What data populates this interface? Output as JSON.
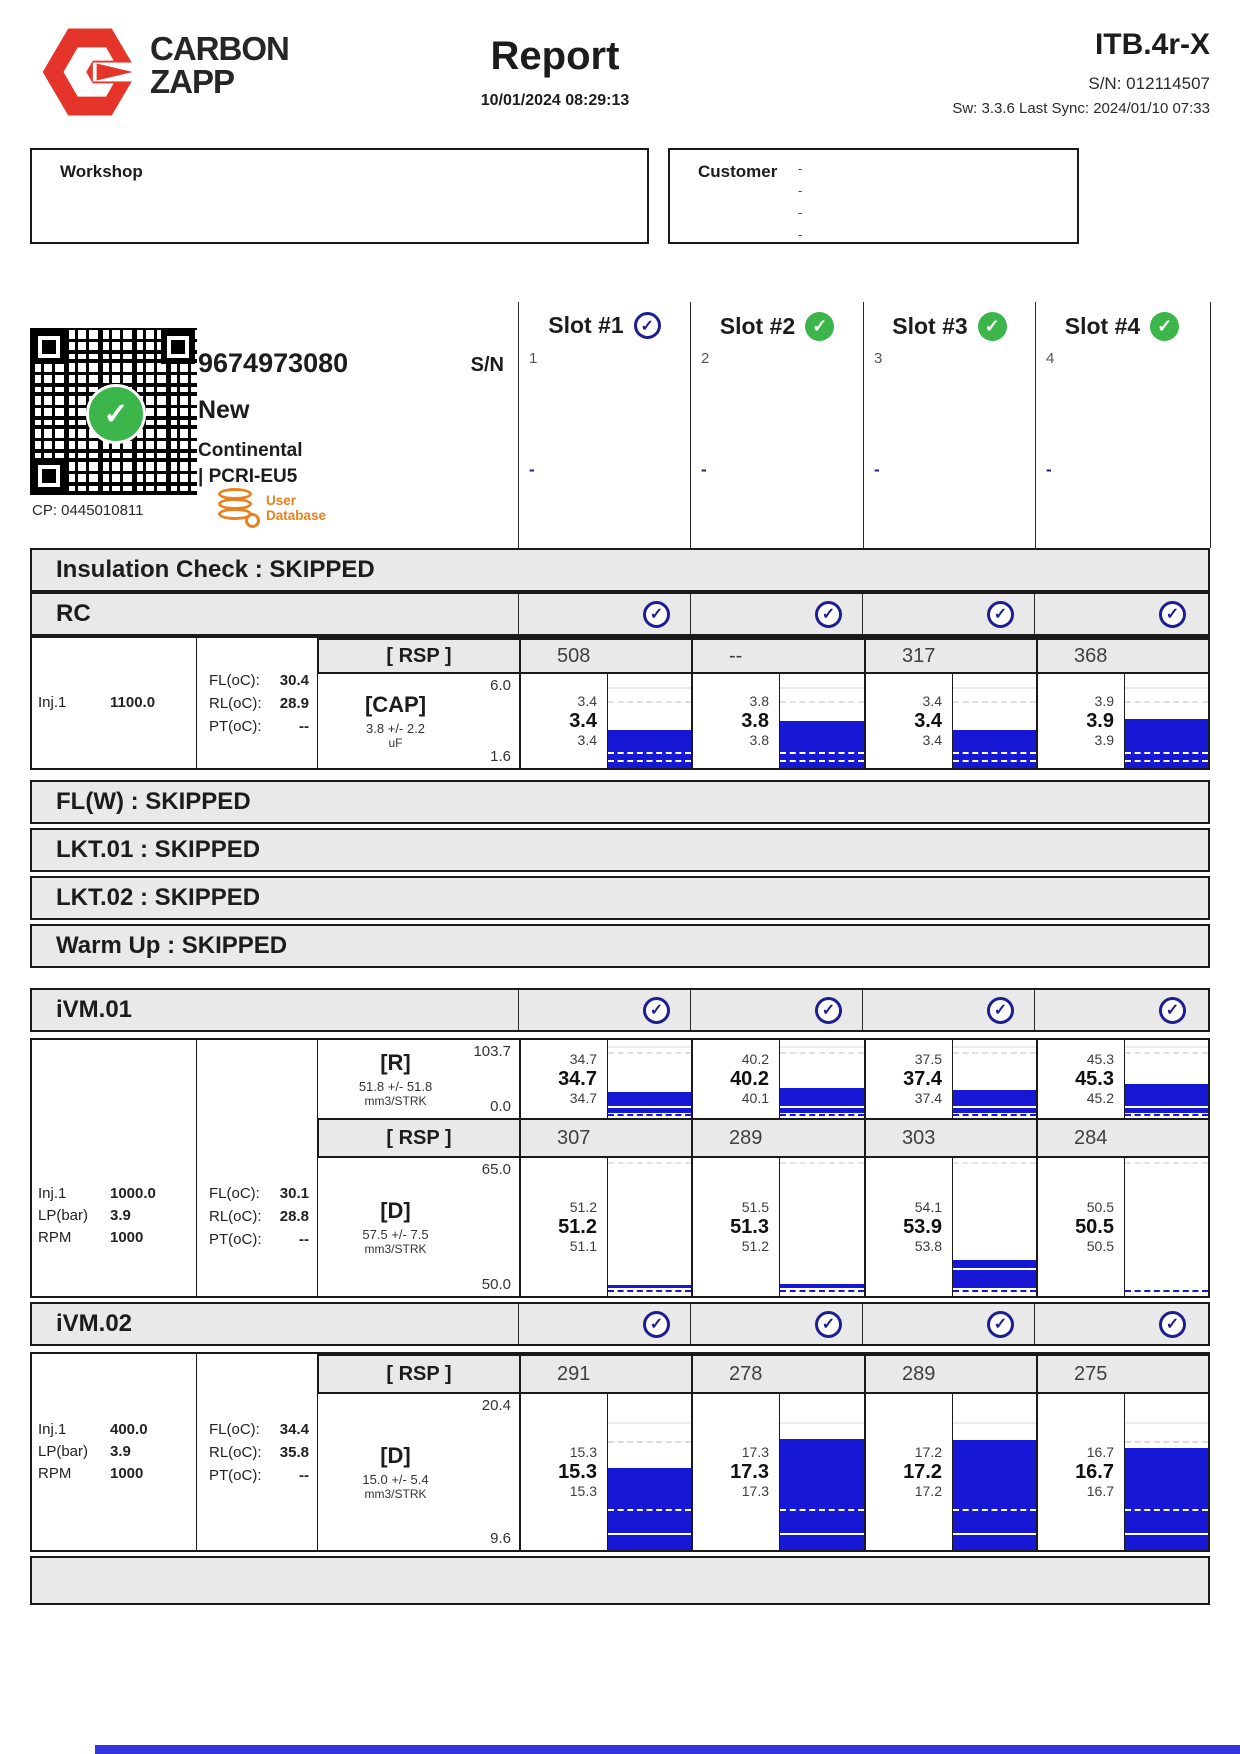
{
  "page": {
    "bg": "#ffffff",
    "accent_red": "#e5352b",
    "chart_blue": "#1717d6",
    "check_green": "#3cb54a",
    "check_navy": "#1d1d94",
    "band_gray": "#e9e9e9",
    "db_orange": "#e8821e"
  },
  "header": {
    "brand_line1": "CARBON",
    "brand_line2": "ZAPP",
    "title": "Report",
    "datetime": "10/01/2024 08:29:13",
    "device": "ITB.4r-X",
    "serial": "S/N: 012114507",
    "sw_line": "Sw: 3.3.6 Last Sync: 2024/01/10 07:33"
  },
  "boxes": {
    "workshop_label": "Workshop",
    "customer_label": "Customer",
    "customer_dashes": [
      "-",
      "-",
      "-",
      "-"
    ]
  },
  "injector": {
    "code": "9674973080",
    "sn_label": "S/N",
    "state": "New",
    "brand": "Continental",
    "series": "| PCRI-EU5",
    "cp": "CP: 0445010811",
    "userdb_line1": "User",
    "userdb_line2": "Database"
  },
  "slots": [
    {
      "label": "Slot #1",
      "index": "1",
      "dash": "-",
      "status": "selected"
    },
    {
      "label": "Slot #2",
      "index": "2",
      "dash": "-",
      "status": "pass"
    },
    {
      "label": "Slot #3",
      "index": "3",
      "dash": "-",
      "status": "pass"
    },
    {
      "label": "Slot #4",
      "index": "4",
      "dash": "-",
      "status": "pass"
    }
  ],
  "bands": {
    "insulation": "Insulation Check : SKIPPED",
    "flw": "FL(W) : SKIPPED",
    "lkt01": "LKT.01 : SKIPPED",
    "lkt02": "LKT.02 : SKIPPED",
    "warmup": "Warm Up : SKIPPED"
  },
  "rc": {
    "title": "RC",
    "rsp_label": "[ RSP ]",
    "rsp": [
      "508",
      "--",
      "317",
      "368"
    ],
    "box": {
      "label": "[CAP]",
      "tol": "3.8 +/- 2.2",
      "unit": "uF",
      "ymax": "6.0",
      "ymin": "1.6"
    },
    "cells": [
      [
        "3.4",
        "3.4",
        "3.4"
      ],
      [
        "3.8",
        "3.8",
        "3.8"
      ],
      [
        "3.4",
        "3.4",
        "3.4"
      ],
      [
        "3.9",
        "3.9",
        "3.9"
      ]
    ],
    "params": [
      {
        "k": "Inj.1",
        "v": "1100.0"
      }
    ],
    "temps": [
      {
        "k": "FL(oC):",
        "v": "30.4"
      },
      {
        "k": "RL(oC):",
        "v": "28.9"
      },
      {
        "k": "PT(oC):",
        "v": "--"
      }
    ]
  },
  "ivm01": {
    "title": "iVM.01",
    "rsp_label": "[ RSP ]",
    "r_box": {
      "label": "[R]",
      "tol": "51.8 +/- 51.8",
      "unit": "mm3/STRK",
      "ymax": "103.7",
      "ymin": "0.0"
    },
    "r_cells": [
      [
        "34.7",
        "34.7",
        "34.7"
      ],
      [
        "40.2",
        "40.2",
        "40.1"
      ],
      [
        "37.5",
        "37.4",
        "37.4"
      ],
      [
        "45.3",
        "45.3",
        "45.2"
      ]
    ],
    "rsp": [
      "307",
      "289",
      "303",
      "284"
    ],
    "d_box": {
      "label": "[D]",
      "tol": "57.5 +/- 7.5",
      "unit": "mm3/STRK",
      "ymax": "65.0",
      "ymin": "50.0"
    },
    "d_cells": [
      [
        "51.2",
        "51.2",
        "51.1"
      ],
      [
        "51.5",
        "51.3",
        "51.2"
      ],
      [
        "54.1",
        "53.9",
        "53.8"
      ],
      [
        "50.5",
        "50.5",
        "50.5"
      ]
    ],
    "params": [
      {
        "k": "Inj.1",
        "v": "1000.0"
      },
      {
        "k": "LP(bar)",
        "v": "3.9"
      },
      {
        "k": "RPM",
        "v": "1000"
      }
    ],
    "temps": [
      {
        "k": "FL(oC):",
        "v": "30.1"
      },
      {
        "k": "RL(oC):",
        "v": "28.8"
      },
      {
        "k": "PT(oC):",
        "v": "--"
      }
    ]
  },
  "ivm02": {
    "title": "iVM.02",
    "rsp_label": "[ RSP ]",
    "rsp": [
      "291",
      "278",
      "289",
      "275"
    ],
    "d_box": {
      "label": "[D]",
      "tol": "15.0 +/- 5.4",
      "unit": "mm3/STRK",
      "ymax": "20.4",
      "ymin": "9.6"
    },
    "d_cells": [
      [
        "15.3",
        "15.3",
        "15.3"
      ],
      [
        "17.3",
        "17.3",
        "17.3"
      ],
      [
        "17.2",
        "17.2",
        "17.2"
      ],
      [
        "16.7",
        "16.7",
        "16.7"
      ]
    ],
    "params": [
      {
        "k": "Inj.1",
        "v": "400.0"
      },
      {
        "k": "LP(bar)",
        "v": "3.9"
      },
      {
        "k": "RPM",
        "v": "1000"
      }
    ],
    "temps": [
      {
        "k": "FL(oC):",
        "v": "34.4"
      },
      {
        "k": "RL(oC):",
        "v": "35.8"
      },
      {
        "k": "PT(oC):",
        "v": "--"
      }
    ]
  },
  "chart_data": [
    {
      "id": "rc_cap",
      "type": "bar",
      "section": "RC",
      "measure": "CAP",
      "unit": "uF",
      "nominal": 3.8,
      "tolerance": 2.2,
      "ylim": [
        1.6,
        6.0
      ],
      "categories": [
        "Slot #1",
        "Slot #2",
        "Slot #3",
        "Slot #4"
      ],
      "values": [
        3.4,
        3.8,
        3.4,
        3.9
      ],
      "rsp_ms": [
        "508",
        "--",
        "317",
        "368"
      ]
    },
    {
      "id": "ivm01_r",
      "type": "bar",
      "section": "iVM.01",
      "measure": "R",
      "unit": "mm3/STRK",
      "nominal": 51.8,
      "tolerance": 51.8,
      "ylim": [
        0.0,
        103.7
      ],
      "categories": [
        "Slot #1",
        "Slot #2",
        "Slot #3",
        "Slot #4"
      ],
      "values": [
        34.7,
        40.2,
        37.4,
        45.3
      ],
      "triplets": [
        [
          34.7,
          34.7,
          34.7
        ],
        [
          40.2,
          40.2,
          40.1
        ],
        [
          37.5,
          37.4,
          37.4
        ],
        [
          45.3,
          45.3,
          45.2
        ]
      ],
      "rsp_ms": [
        "307",
        "289",
        "303",
        "284"
      ]
    },
    {
      "id": "ivm01_d",
      "type": "bar",
      "section": "iVM.01",
      "measure": "D",
      "unit": "mm3/STRK",
      "nominal": 57.5,
      "tolerance": 7.5,
      "ylim": [
        50.0,
        65.0
      ],
      "categories": [
        "Slot #1",
        "Slot #2",
        "Slot #3",
        "Slot #4"
      ],
      "values": [
        51.2,
        51.3,
        53.9,
        50.5
      ],
      "triplets": [
        [
          51.2,
          51.2,
          51.1
        ],
        [
          51.5,
          51.3,
          51.2
        ],
        [
          54.1,
          53.9,
          53.8
        ],
        [
          50.5,
          50.5,
          50.5
        ]
      ]
    },
    {
      "id": "ivm02_d",
      "type": "bar",
      "section": "iVM.02",
      "measure": "D",
      "unit": "mm3/STRK",
      "nominal": 15.0,
      "tolerance": 5.4,
      "ylim": [
        9.6,
        20.4
      ],
      "categories": [
        "Slot #1",
        "Slot #2",
        "Slot #3",
        "Slot #4"
      ],
      "values": [
        15.3,
        17.3,
        17.2,
        16.7
      ],
      "triplets": [
        [
          15.3,
          15.3,
          15.3
        ],
        [
          17.3,
          17.3,
          17.3
        ],
        [
          17.2,
          17.2,
          17.2
        ],
        [
          16.7,
          16.7,
          16.7
        ]
      ],
      "rsp_ms": [
        "291",
        "278",
        "289",
        "275"
      ]
    }
  ]
}
